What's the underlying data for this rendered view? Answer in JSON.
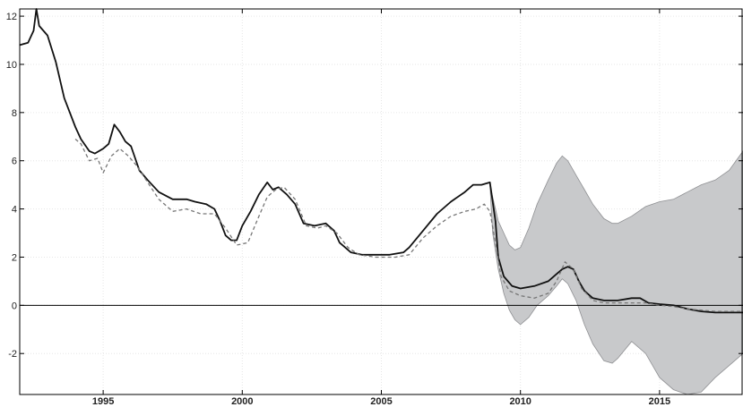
{
  "chart_data": {
    "type": "line",
    "title": "",
    "xlabel": "",
    "ylabel": "",
    "xlim": [
      1992,
      2018
    ],
    "ylim": [
      -3.7,
      12.3
    ],
    "grid": true,
    "legend": "none",
    "x_ticks": [
      1995,
      2000,
      2005,
      2010,
      2015
    ],
    "x_tick_labels": [
      "1995",
      "2000",
      "2005",
      "2010",
      "2015"
    ],
    "y_ticks": [
      -2,
      0,
      2,
      4,
      6,
      8,
      10,
      12
    ],
    "y_tick_labels": [
      "-2",
      "0",
      "2",
      "4",
      "6",
      "8",
      "10",
      "12"
    ],
    "reference_line_y": 0,
    "colors": {
      "solid": "#111111",
      "dashed": "#777777",
      "band": "#c8c9cb",
      "band_edge": "#8f9093",
      "grid": "#e6e6e6",
      "axis": "#000000"
    },
    "series": [
      {
        "style": "solid",
        "x": [
          1992.0,
          1992.3,
          1992.5,
          1992.6,
          1992.7,
          1993.0,
          1993.3,
          1993.6,
          1993.8,
          1994.0,
          1994.2,
          1994.5,
          1994.7,
          1995.0,
          1995.2,
          1995.4,
          1995.6,
          1995.8,
          1996.0,
          1996.3,
          1996.6,
          1997.0,
          1997.5,
          1998.0,
          1998.3,
          1998.7,
          1999.0,
          1999.2,
          1999.4,
          1999.6,
          1999.8,
          2000.0,
          2000.3,
          2000.6,
          2000.9,
          2001.1,
          2001.3,
          2001.6,
          2001.9,
          2002.2,
          2002.6,
          2003.0,
          2003.3,
          2003.5,
          2003.9,
          2004.3,
          2004.8,
          2005.3,
          2005.8,
          2006.0,
          2006.5,
          2007.0,
          2007.5,
          2008.0,
          2008.3,
          2008.6,
          2008.9,
          2009.1,
          2009.2,
          2009.4,
          2009.7,
          2010.0,
          2010.5,
          2011.0,
          2011.3,
          2011.5,
          2011.7,
          2011.9,
          2012.1,
          2012.3,
          2012.6,
          2013.0,
          2013.5,
          2014.0,
          2014.3,
          2014.6,
          2015.0,
          2015.5,
          2016.0,
          2016.5,
          2017.0,
          2017.5,
          2018.0
        ],
        "y": [
          10.8,
          10.9,
          11.4,
          12.3,
          11.6,
          11.2,
          10.1,
          8.6,
          8.0,
          7.4,
          6.9,
          6.4,
          6.3,
          6.5,
          6.7,
          7.5,
          7.2,
          6.8,
          6.6,
          5.6,
          5.2,
          4.7,
          4.4,
          4.4,
          4.3,
          4.2,
          4.0,
          3.5,
          2.9,
          2.7,
          2.7,
          3.3,
          3.9,
          4.6,
          5.1,
          4.8,
          4.9,
          4.6,
          4.2,
          3.4,
          3.3,
          3.4,
          3.1,
          2.6,
          2.2,
          2.1,
          2.1,
          2.1,
          2.2,
          2.4,
          3.1,
          3.8,
          4.3,
          4.7,
          5.0,
          5.0,
          5.1,
          3.5,
          2.0,
          1.2,
          0.8,
          0.7,
          0.8,
          1.0,
          1.3,
          1.5,
          1.6,
          1.5,
          1.0,
          0.6,
          0.3,
          0.2,
          0.2,
          0.3,
          0.3,
          0.1,
          0.05,
          0.0,
          -0.15,
          -0.25,
          -0.3,
          -0.3,
          -0.3
        ]
      },
      {
        "style": "dashed",
        "x": [
          1994.0,
          1994.2,
          1994.5,
          1994.8,
          1995.0,
          1995.3,
          1995.6,
          1995.9,
          1996.2,
          1996.6,
          1997.0,
          1997.5,
          1998.0,
          1998.5,
          1999.0,
          1999.4,
          1999.8,
          2000.2,
          2000.6,
          2000.9,
          2001.2,
          2001.5,
          2001.9,
          2002.3,
          2002.7,
          2003.0,
          2003.4,
          2003.8,
          2004.2,
          2004.8,
          2005.5,
          2006.0,
          2006.5,
          2007.0,
          2007.5,
          2008.0,
          2008.4,
          2008.7,
          2008.9,
          2009.1,
          2009.3,
          2009.6,
          2010.0,
          2010.5,
          2011.0,
          2011.3,
          2011.6,
          2011.9,
          2012.2,
          2012.6,
          2013.0,
          2013.5,
          2014.0,
          2014.5,
          2015.0,
          2015.5,
          2016.0,
          2016.5,
          2017.0,
          2017.5,
          2018.0
        ],
        "y": [
          6.9,
          6.7,
          6.0,
          6.1,
          5.5,
          6.2,
          6.5,
          6.2,
          5.8,
          5.1,
          4.4,
          3.9,
          4.0,
          3.8,
          3.8,
          3.2,
          2.5,
          2.6,
          3.7,
          4.5,
          4.8,
          4.9,
          4.4,
          3.3,
          3.2,
          3.3,
          3.0,
          2.4,
          2.1,
          2.0,
          2.0,
          2.1,
          2.8,
          3.3,
          3.7,
          3.9,
          4.0,
          4.2,
          3.9,
          2.6,
          1.2,
          0.6,
          0.4,
          0.3,
          0.5,
          1.0,
          1.8,
          1.5,
          0.7,
          0.2,
          0.1,
          0.1,
          0.1,
          0.1,
          0.0,
          -0.05,
          -0.15,
          -0.2,
          -0.25,
          -0.25,
          -0.25
        ]
      }
    ],
    "band": {
      "x": [
        2008.9,
        2009.0,
        2009.2,
        2009.4,
        2009.6,
        2009.8,
        2010.0,
        2010.3,
        2010.6,
        2011.0,
        2011.3,
        2011.5,
        2011.7,
        2012.0,
        2012.3,
        2012.6,
        2013.0,
        2013.3,
        2013.5,
        2014.0,
        2014.5,
        2015.0,
        2015.5,
        2016.0,
        2016.5,
        2017.0,
        2017.5,
        2018.0
      ],
      "upper": [
        5.0,
        4.5,
        3.5,
        3.0,
        2.5,
        2.3,
        2.4,
        3.2,
        4.2,
        5.2,
        5.9,
        6.2,
        6.0,
        5.4,
        4.8,
        4.2,
        3.6,
        3.4,
        3.4,
        3.7,
        4.1,
        4.3,
        4.4,
        4.7,
        5.0,
        5.2,
        5.6,
        6.4
      ],
      "lower": [
        5.0,
        3.0,
        1.5,
        0.5,
        -0.2,
        -0.6,
        -0.8,
        -0.5,
        0.0,
        0.4,
        0.8,
        1.1,
        0.9,
        0.2,
        -0.8,
        -1.6,
        -2.3,
        -2.4,
        -2.2,
        -1.5,
        -2.0,
        -3.0,
        -3.5,
        -3.7,
        -3.6,
        -3.0,
        -2.5,
        -2.0
      ]
    }
  }
}
